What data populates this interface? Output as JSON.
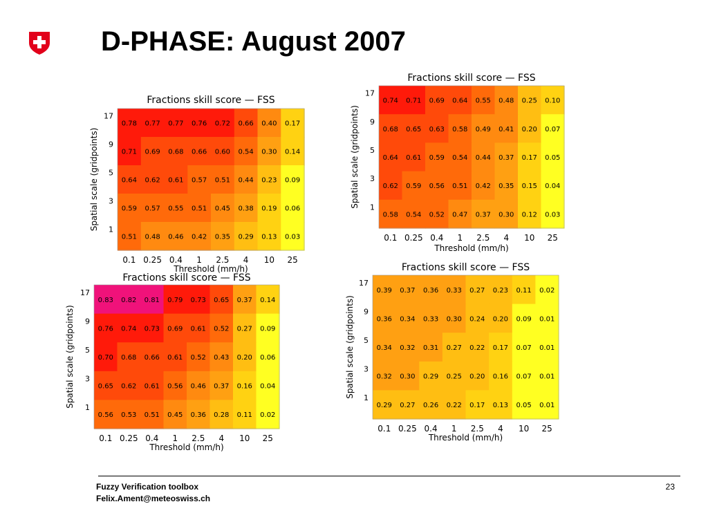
{
  "slide": {
    "title": "D-PHASE: August 2007",
    "logo_icon": "swiss-cross-shield-icon",
    "footer_line1": "Fuzzy Verification toolbox",
    "footer_line2": "Felix.Ament@meteoswiss.ch",
    "page_number": "23"
  },
  "colors": {
    "above_080": "#f0127a",
    "070_080": "#ff1a0a",
    "060_070": "#ff4a0a",
    "050_060": "#ff6a0a",
    "040_050": "#ff8a10",
    "030_040": "#ffa012",
    "020_030": "#ffbe12",
    "010_020": "#ffd212",
    "below_010": "#ffff22"
  },
  "chart_data": [
    {
      "type": "heatmap",
      "title": "Fractions skill score — FSS",
      "xlabel": "Threshold (mm/h)",
      "ylabel": "Spatial scale (gridpoints)",
      "x": [
        "0.1",
        "0.25",
        "0.4",
        "1",
        "2.5",
        "4",
        "10",
        "25"
      ],
      "y": [
        "17",
        "9",
        "5",
        "3",
        "1"
      ],
      "values": [
        [
          "0.78",
          "0.77",
          "0.77",
          "0.76",
          "0.72",
          "0.66",
          "0.40",
          "0.17"
        ],
        [
          "0.71",
          "0.69",
          "0.68",
          "0.66",
          "0.60",
          "0.54",
          "0.30",
          "0.14"
        ],
        [
          "0.64",
          "0.62",
          "0.61",
          "0.57",
          "0.51",
          "0.44",
          "0.23",
          "0.09"
        ],
        [
          "0.59",
          "0.57",
          "0.55",
          "0.51",
          "0.45",
          "0.38",
          "0.19",
          "0.06"
        ],
        [
          "0.51",
          "0.48",
          "0.46",
          "0.42",
          "0.35",
          "0.29",
          "0.13",
          "0.03"
        ]
      ]
    },
    {
      "type": "heatmap",
      "title": "Fractions skill score — FSS",
      "xlabel": "Threshold (mm/h)",
      "ylabel": "Spatial scale (gridpoints)",
      "x": [
        "0.1",
        "0.25",
        "0.4",
        "1",
        "2.5",
        "4",
        "10",
        "25"
      ],
      "y": [
        "17",
        "9",
        "5",
        "3",
        "1"
      ],
      "values": [
        [
          "0.74",
          "0.71",
          "0.69",
          "0.64",
          "0.55",
          "0.48",
          "0.25",
          "0.10"
        ],
        [
          "0.68",
          "0.65",
          "0.63",
          "0.58",
          "0.49",
          "0.41",
          "0.20",
          "0.07"
        ],
        [
          "0.64",
          "0.61",
          "0.59",
          "0.54",
          "0.44",
          "0.37",
          "0.17",
          "0.05"
        ],
        [
          "0.62",
          "0.59",
          "0.56",
          "0.51",
          "0.42",
          "0.35",
          "0.15",
          "0.04"
        ],
        [
          "0.58",
          "0.54",
          "0.52",
          "0.47",
          "0.37",
          "0.30",
          "0.12",
          "0.03"
        ]
      ]
    },
    {
      "type": "heatmap",
      "title": "Fractions skill score — FSS",
      "xlabel": "Threshold (mm/h)",
      "ylabel": "Spatial scale (gridpoints)",
      "x": [
        "0.1",
        "0.25",
        "0.4",
        "1",
        "2.5",
        "4",
        "10",
        "25"
      ],
      "y": [
        "17",
        "9",
        "5",
        "3",
        "1"
      ],
      "values": [
        [
          "0.83",
          "0.82",
          "0.81",
          "0.79",
          "0.73",
          "0.65",
          "0.37",
          "0.14"
        ],
        [
          "0.76",
          "0.74",
          "0.73",
          "0.69",
          "0.61",
          "0.52",
          "0.27",
          "0.09"
        ],
        [
          "0.70",
          "0.68",
          "0.66",
          "0.61",
          "0.52",
          "0.43",
          "0.20",
          "0.06"
        ],
        [
          "0.65",
          "0.62",
          "0.61",
          "0.56",
          "0.46",
          "0.37",
          "0.16",
          "0.04"
        ],
        [
          "0.56",
          "0.53",
          "0.51",
          "0.45",
          "0.36",
          "0.28",
          "0.11",
          "0.02"
        ]
      ]
    },
    {
      "type": "heatmap",
      "title": "Fractions skill score — FSS",
      "xlabel": "Threshold (mm/h)",
      "ylabel": "Spatial scale (gridpoints)",
      "x": [
        "0.1",
        "0.25",
        "0.4",
        "1",
        "2.5",
        "4",
        "10",
        "25"
      ],
      "y": [
        "17",
        "9",
        "5",
        "3",
        "1"
      ],
      "values": [
        [
          "0.39",
          "0.37",
          "0.36",
          "0.33",
          "0.27",
          "0.23",
          "0.11",
          "0.02"
        ],
        [
          "0.36",
          "0.34",
          "0.33",
          "0.30",
          "0.24",
          "0.20",
          "0.09",
          "0.01"
        ],
        [
          "0.34",
          "0.32",
          "0.31",
          "0.27",
          "0.22",
          "0.17",
          "0.07",
          "0.01"
        ],
        [
          "0.32",
          "0.30",
          "0.29",
          "0.25",
          "0.20",
          "0.16",
          "0.07",
          "0.01"
        ],
        [
          "0.29",
          "0.27",
          "0.26",
          "0.22",
          "0.17",
          "0.13",
          "0.05",
          "0.01"
        ]
      ]
    }
  ]
}
